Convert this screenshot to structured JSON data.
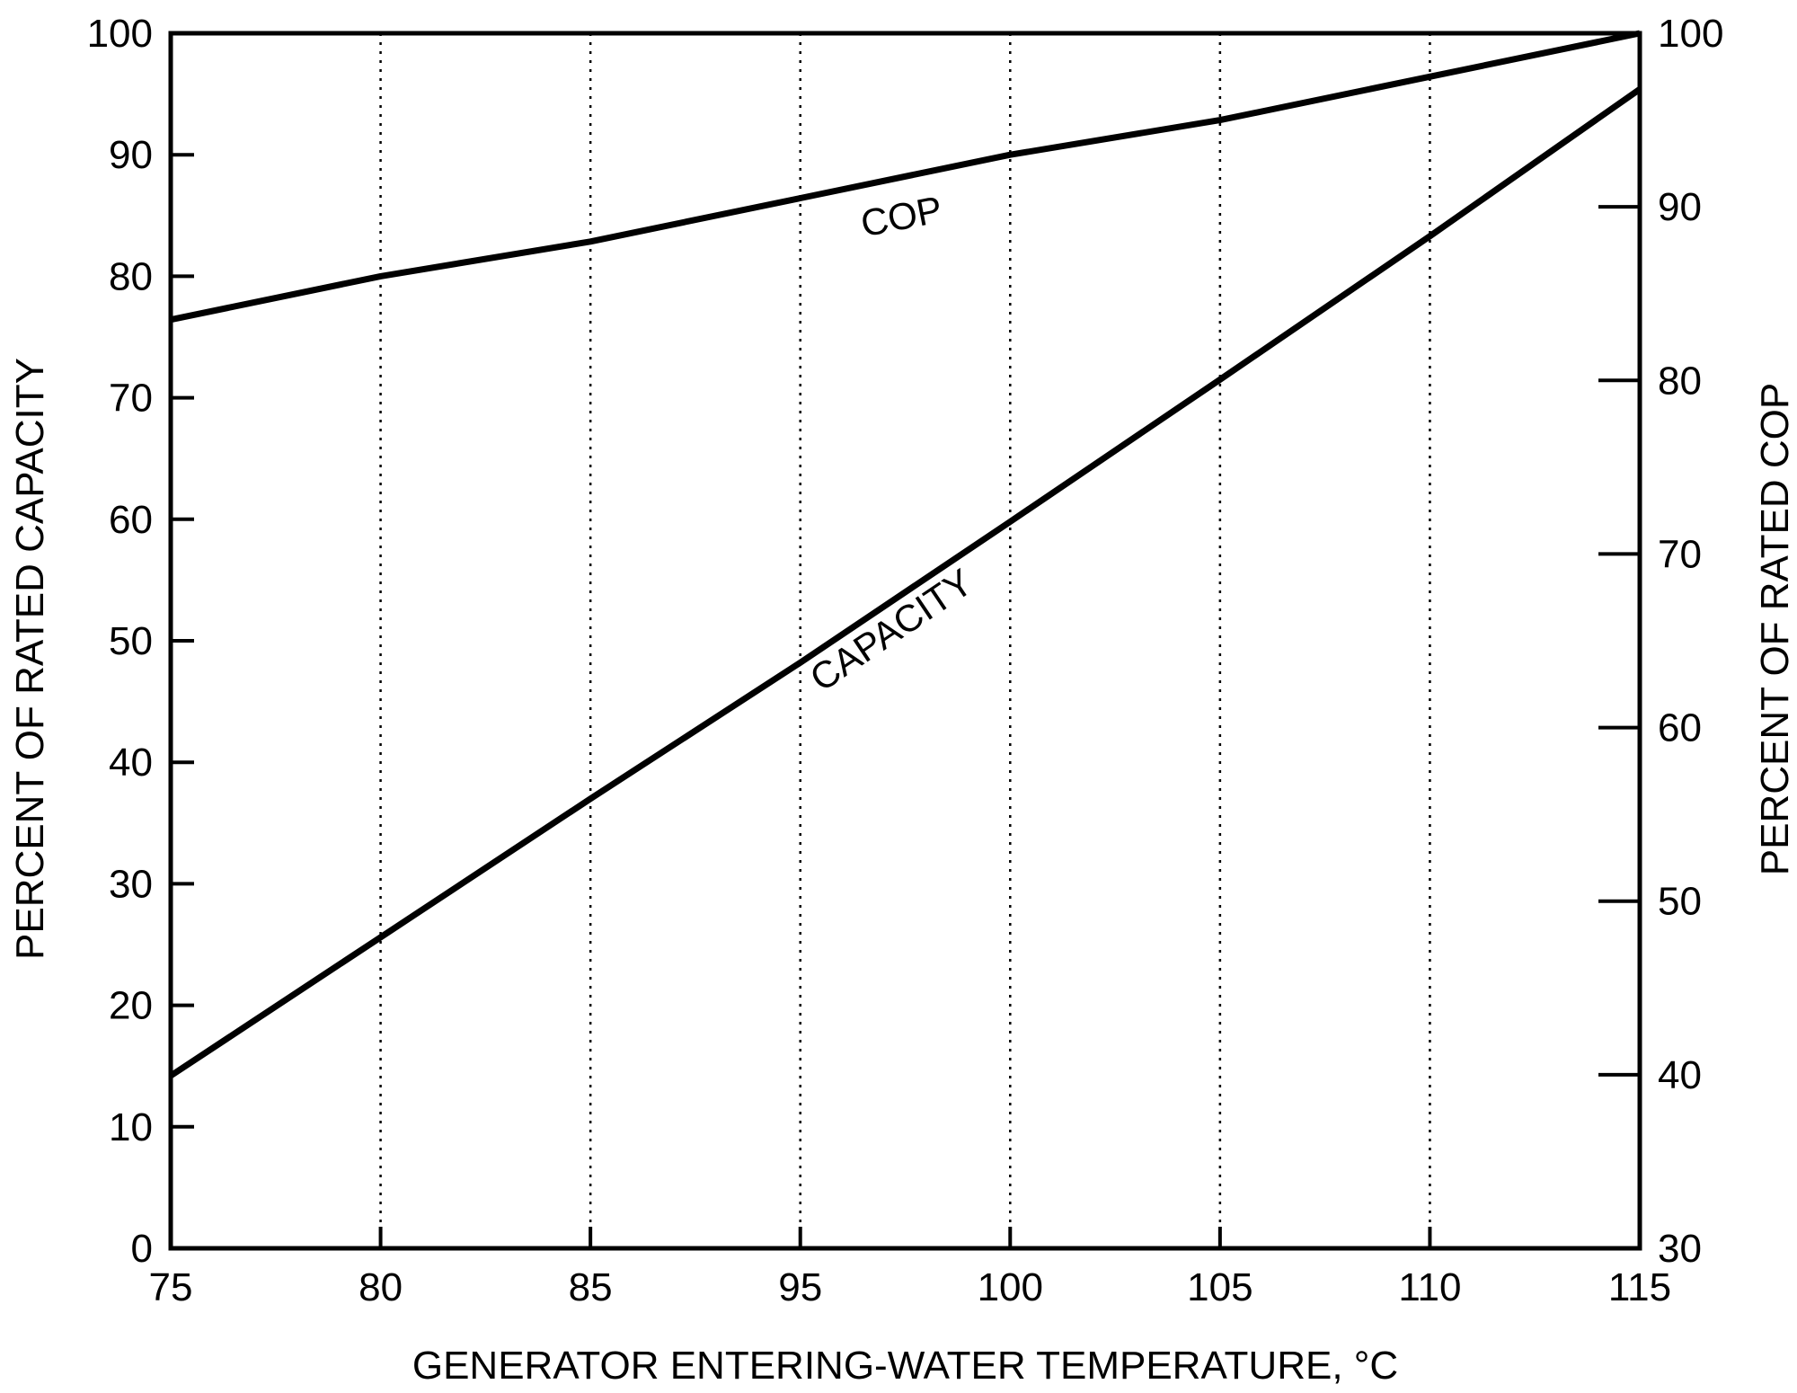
{
  "chart_data": {
    "type": "line",
    "title": "",
    "xlabel": "GENERATOR ENTERING-WATER TEMPERATURE, °C",
    "ylabel_left": "PERCENT OF RATED CAPACITY",
    "ylabel_right": "PERCENT OF RATED COP",
    "x_ticks": [
      "75",
      "80",
      "85",
      "95",
      "100",
      "105",
      "110",
      "115"
    ],
    "y_left_ticks": [
      "0",
      "10",
      "20",
      "30",
      "40",
      "50",
      "60",
      "70",
      "80",
      "90",
      "100"
    ],
    "y_right_ticks": [
      "30",
      "40",
      "50",
      "60",
      "70",
      "80",
      "90",
      "100"
    ],
    "ylim_left": [
      0,
      100
    ],
    "ylim_right": [
      30,
      100
    ],
    "grid": "vertical dotted lines at each x tick",
    "series": [
      {
        "name": "COP",
        "axis": "right",
        "x": [
          "75",
          "80",
          "85",
          "95",
          "100",
          "105",
          "110",
          "115"
        ],
        "values": [
          83.5,
          86.0,
          88.0,
          90.5,
          93.0,
          95.0,
          97.5,
          100.0
        ]
      },
      {
        "name": "CAPACITY",
        "axis": "left",
        "x": [
          "75",
          "80",
          "85",
          "95",
          "100",
          "105",
          "110",
          "115"
        ],
        "values": [
          14.2,
          25.6,
          37.0,
          48.2,
          59.8,
          71.5,
          83.3,
          95.4
        ]
      }
    ],
    "annotations": [
      "COP",
      "CAPACITY"
    ],
    "colors": {
      "line": "#000000",
      "grid": "#000000",
      "background": "#ffffff"
    }
  }
}
